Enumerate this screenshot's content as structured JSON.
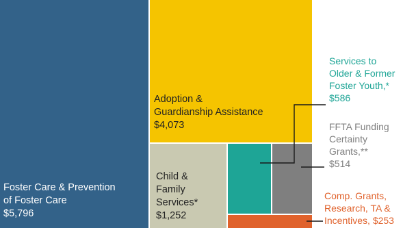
{
  "chart_data": {
    "type": "treemap",
    "unit": "$",
    "slices": [
      {
        "label": "Foster Care & Prevention of Foster Care",
        "value": 5796,
        "value_label": "$5,796",
        "color": "#336289",
        "text_color": "#ffffff",
        "lines": [
          "Foster Care & Prevention",
          "of Foster Care",
          "$5,796"
        ]
      },
      {
        "label": "Adoption & Guardianship Assistance",
        "value": 4073,
        "value_label": "$4,073",
        "color": "#f5c400",
        "text_color": "#222222",
        "lines": [
          "Adoption &",
          "Guardianship Assistance",
          "$4,073"
        ]
      },
      {
        "label": "Child & Family Services*",
        "value": 1252,
        "value_label": "$1,252",
        "color": "#c9c9b1",
        "text_color": "#222222",
        "lines": [
          "Child &",
          "Family",
          "Services*",
          "$1,252"
        ]
      },
      {
        "label": "Services to Older & Former Foster Youth,*",
        "value": 586,
        "value_label": "$586",
        "color": "#1ea596",
        "text_color": "#1ea596",
        "lines": [
          "Services to",
          "Older & Former",
          "Foster Youth,*",
          "$586"
        ]
      },
      {
        "label": "FFTA Funding Certainty Grants,**",
        "value": 514,
        "value_label": "$514",
        "color": "#7f7f7f",
        "text_color": "#7f7f7f",
        "lines": [
          "FFTA Funding",
          "Certainty",
          "Grants,**",
          "$514"
        ]
      },
      {
        "label": "Comp. Grants, Research, TA & Incentives,",
        "value": 253,
        "value_label": "$253",
        "color": "#e0622c",
        "text_color": "#e0622c",
        "lines": [
          "Comp. Grants,",
          "Research, TA &",
          "Incentives, $253"
        ]
      }
    ]
  }
}
